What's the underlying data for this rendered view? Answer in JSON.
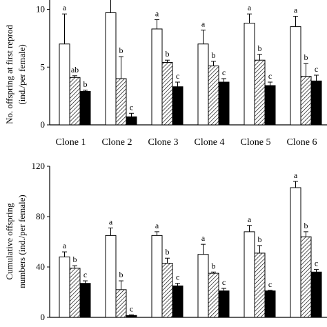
{
  "chart_data": [
    {
      "type": "bar",
      "ylabel": [
        "No. offspring at first reprod",
        "(ind./per female)"
      ],
      "ylim": [
        0,
        12
      ],
      "yticks": [
        0,
        5,
        10
      ],
      "categories": [
        "Clone 1",
        "Clone 2",
        "Clone 3",
        "Clone 4",
        "Clone 5",
        "Clone 6"
      ],
      "series": [
        {
          "fill": "white",
          "values": [
            7.0,
            9.7,
            8.3,
            7.0,
            8.8,
            8.5
          ],
          "errors": [
            2.6,
            1.2,
            0.8,
            1.2,
            0.8,
            0.9
          ],
          "letters": [
            "a",
            "a",
            "a",
            "a",
            "a",
            "a"
          ]
        },
        {
          "fill": "hatched",
          "values": [
            4.1,
            4.0,
            5.4,
            5.1,
            5.6,
            4.2
          ],
          "errors": [
            0.15,
            1.9,
            0.2,
            0.4,
            0.5,
            1.1
          ],
          "letters": [
            "ab",
            "b",
            "b",
            "b",
            "b",
            "b"
          ]
        },
        {
          "fill": "black",
          "values": [
            2.9,
            0.7,
            3.3,
            3.7,
            3.4,
            3.8
          ],
          "errors": [
            0.1,
            0.3,
            0.4,
            0.3,
            0.3,
            0.5
          ],
          "letters": [
            "b",
            "c",
            "c",
            "c",
            "c",
            "c"
          ]
        }
      ]
    },
    {
      "type": "bar",
      "ylabel": [
        "Cumulative offspring",
        "numbers (ind./per female)"
      ],
      "ylim": [
        0,
        120
      ],
      "yticks": [
        0,
        40,
        80,
        120
      ],
      "categories": [
        "Clone 1",
        "Clone 2",
        "Clone 3",
        "Clone 4",
        "Clone 5",
        "Clone 6"
      ],
      "series": [
        {
          "fill": "white",
          "values": [
            48,
            65,
            65,
            50,
            68,
            103
          ],
          "errors": [
            4,
            6,
            3,
            8,
            5,
            5
          ],
          "letters": [
            "a",
            "a",
            "a",
            "a",
            "a",
            "a"
          ]
        },
        {
          "fill": "hatched",
          "values": [
            39,
            22,
            43,
            35,
            51,
            64
          ],
          "errors": [
            2,
            7,
            4,
            1,
            6,
            4
          ],
          "letters": [
            "b",
            "b",
            "b",
            "b",
            "b",
            "b"
          ]
        },
        {
          "fill": "black",
          "values": [
            27,
            1.5,
            25,
            21,
            21,
            36
          ],
          "errors": [
            2,
            0.5,
            2,
            2,
            0.5,
            2
          ],
          "letters": [
            "c",
            "c",
            "c",
            "c",
            "c",
            "c"
          ]
        }
      ]
    }
  ]
}
